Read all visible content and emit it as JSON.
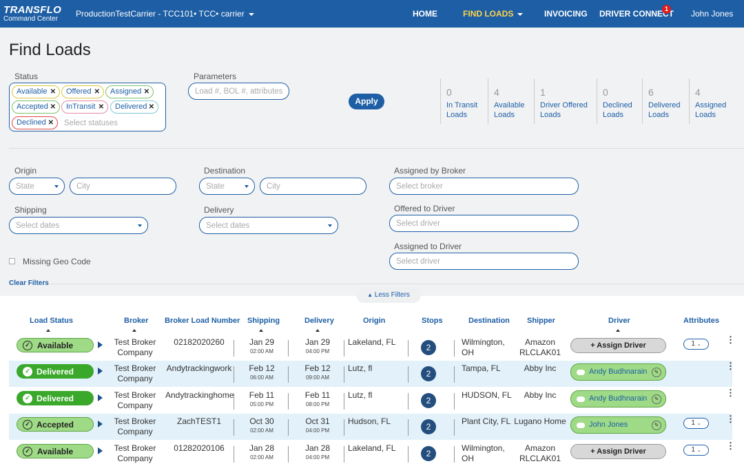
{
  "header": {
    "logo_top": "TRANSFLO",
    "logo_bottom": "Command Center",
    "carrier": "ProductionTestCarrier - TCC101• TCC• carrier",
    "nav": [
      "HOME",
      "FIND LOADS",
      "INVOICING",
      "DRIVER CONNECT"
    ],
    "driver_connect_badge": "1",
    "user": "John Jones",
    "active_color": "#ffd54a",
    "bar_color": "#1d5ea5"
  },
  "page_title": "Find Loads",
  "status_filter": {
    "label": "Status",
    "chips": [
      "Available",
      "Offered",
      "Assigned",
      "Accepted",
      "InTransit",
      "Delivered",
      "Declined"
    ],
    "placeholder": "Select statuses"
  },
  "parameters": {
    "label": "Parameters",
    "placeholder": "Load #, BOL #, attributes"
  },
  "apply_label": "Apply",
  "stats": [
    {
      "count": "0",
      "line1": "In Transit",
      "line2": "Loads"
    },
    {
      "count": "4",
      "line1": "Available",
      "line2": "Loads"
    },
    {
      "count": "1",
      "line1": "Driver Offered",
      "line2": "Loads"
    },
    {
      "count": "0",
      "line1": "Declined",
      "line2": "Loads"
    },
    {
      "count": "6",
      "line1": "Delivered",
      "line2": "Loads"
    },
    {
      "count": "4",
      "line1": "Assigned",
      "line2": "Loads"
    }
  ],
  "filters": {
    "origin": {
      "label": "Origin",
      "state_placeholder": "State",
      "city_placeholder": "City"
    },
    "destination": {
      "label": "Destination",
      "state_placeholder": "State",
      "city_placeholder": "City"
    },
    "shipping": {
      "label": "Shipping",
      "placeholder": "Select dates"
    },
    "delivery": {
      "label": "Delivery",
      "placeholder": "Select dates"
    },
    "assigned_by_broker": {
      "label": "Assigned by Broker",
      "placeholder": "Select broker"
    },
    "offered_to_driver": {
      "label": "Offered to Driver",
      "placeholder": "Select driver"
    },
    "assigned_to_driver": {
      "label": "Assigned to Driver",
      "placeholder": "Select driver"
    },
    "missing_geo": "Missing Geo Code",
    "clear": "Clear Filters",
    "less": "Less Filters"
  },
  "table": {
    "headers": [
      "Load Status",
      "Broker",
      "Broker Load Number",
      "Shipping",
      "Delivery",
      "Origin",
      "Stops",
      "Destination",
      "Shipper",
      "Driver",
      "Attributes"
    ],
    "assign_label": "+ Assign Driver",
    "rows": [
      {
        "status": "Available",
        "broker1": "Test Broker",
        "broker2": "Company",
        "load": "02182020260",
        "ship_date": "Jan 29",
        "ship_time": "02:00 AM",
        "del_date": "Jan 29",
        "del_time": "04:00 PM",
        "origin": "Lakeland, FL",
        "stops": "2",
        "dest1": "Wilmington,",
        "dest2": "OH",
        "shipper1": "Amazon",
        "shipper2": "RLCLAK01",
        "driver": "",
        "attr": "1"
      },
      {
        "status": "Delivered",
        "broker1": "Test Broker",
        "broker2": "Company",
        "load": "Andytrackingwork",
        "ship_date": "Feb 12",
        "ship_time": "06:00 AM",
        "del_date": "Feb 12",
        "del_time": "09:00 AM",
        "origin": "Lutz, fl",
        "stops": "2",
        "dest1": "Tampa, FL",
        "dest2": "",
        "shipper1": "Abby Inc",
        "shipper2": "",
        "driver": "Andy Budhnarain",
        "attr": ""
      },
      {
        "status": "Delivered",
        "broker1": "Test Broker",
        "broker2": "Company",
        "load": "Andytrackinghome",
        "ship_date": "Feb 11",
        "ship_time": "05:00 PM",
        "del_date": "Feb 11",
        "del_time": "08:00 PM",
        "origin": "Lutz, fl",
        "stops": "2",
        "dest1": "HUDSON, FL",
        "dest2": "",
        "shipper1": "Abby Inc",
        "shipper2": "",
        "driver": "Andy Budhnarain",
        "attr": ""
      },
      {
        "status": "Accepted",
        "broker1": "Test Broker",
        "broker2": "Company",
        "load": "ZachTEST1",
        "ship_date": "Oct 30",
        "ship_time": "02:00 AM",
        "del_date": "Oct 31",
        "del_time": "04:00 PM",
        "origin": "Hudson, FL",
        "stops": "2",
        "dest1": "Plant City, FL",
        "dest2": "",
        "shipper1": "Lugano Home",
        "shipper2": "",
        "driver": "John Jones",
        "attr": "1"
      },
      {
        "status": "Available",
        "broker1": "Test Broker",
        "broker2": "Company",
        "load": "01282020106",
        "ship_date": "Jan 28",
        "ship_time": "02:00 AM",
        "del_date": "Jan 28",
        "del_time": "04:00 PM",
        "origin": "Lakeland, FL",
        "stops": "2",
        "dest1": "Wilmington,",
        "dest2": "OH",
        "shipper1": "Amazon",
        "shipper2": "RLCLAK01",
        "driver": "",
        "attr": "1"
      }
    ]
  }
}
